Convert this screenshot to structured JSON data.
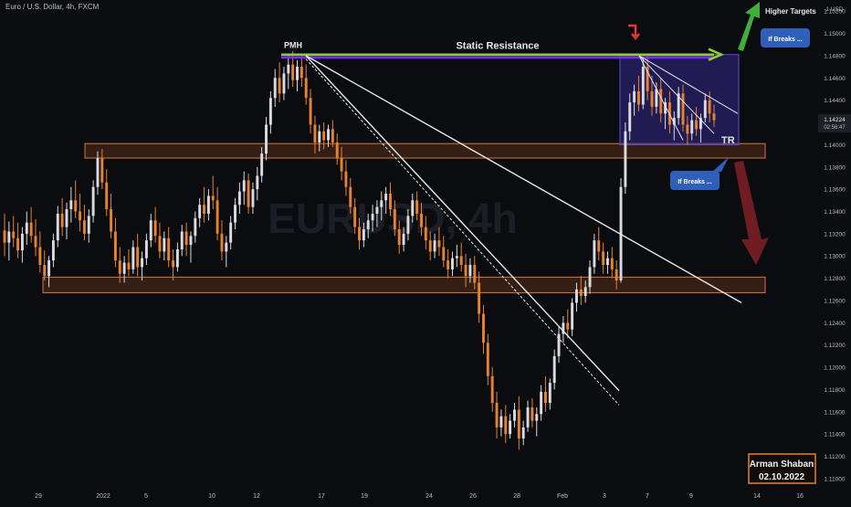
{
  "header": {
    "title": "Euro / U.S. Dollar, 4h, FXCM"
  },
  "watermark": {
    "symbol": "EURUSD, 4h"
  },
  "price_axis": {
    "currency": "USD",
    "currency_label": "1 USD"
  },
  "colors": {
    "background": "#0b0c10",
    "candle_up": "#d9dbe0",
    "candle_down": "#e8822b",
    "zone_fill": "#5a2f1a",
    "zone_border": "#d4763a",
    "resistance_line": "#8bd12a",
    "resistance_line_under": "#7a2cff",
    "range_box": "#3b2fa8",
    "arrow_up": "#3fae3a",
    "arrow_down": "#7a1f26",
    "callout_bg": "#2f5fb8",
    "signature_border": "#e8822b"
  },
  "annotations": {
    "pmh_label": "PMH",
    "static_resistance_label": "Static Resistance",
    "tr_label": "TR",
    "higher_targets_label": "Higher Targets",
    "callout_top": "If Breaks ...",
    "callout_bottom": "If Breaks ...",
    "signature_name": "Arman Shaban",
    "signature_date": "02.10.2022"
  },
  "chart_data": {
    "type": "candlestick",
    "title": "Euro / U.S. Dollar, 4h, FXCM",
    "xlabel": "",
    "ylabel": "",
    "y_ticks": [
      "1.15200",
      "1.15000",
      "1.14800",
      "1.14600",
      "1.14400",
      "1.14200",
      "1.14000",
      "1.13800",
      "1.13600",
      "1.13400",
      "1.13200",
      "1.13000",
      "1.12800",
      "1.12600",
      "1.12400",
      "1.12200",
      "1.12000",
      "1.11800",
      "1.11600",
      "1.11400",
      "1.11200",
      "1.11000"
    ],
    "x_ticks": [
      "29",
      "2022",
      "5",
      "10",
      "12",
      "17",
      "19",
      "24",
      "26",
      "28",
      "Feb",
      "3",
      "7",
      "9",
      "14",
      "16"
    ],
    "ylim": [
      1.1095,
      1.153
    ],
    "current_price": "1.14224",
    "countdown": "02:56:47",
    "levels": {
      "static_resistance": 1.1481,
      "resistance_zone": [
        1.1388,
        1.1401
      ],
      "support_zone": [
        1.1267,
        1.1281
      ]
    },
    "ohlc": [
      [
        1.1323,
        1.1338,
        1.13,
        1.1312
      ],
      [
        1.1312,
        1.1331,
        1.1296,
        1.1322
      ],
      [
        1.1322,
        1.1336,
        1.1308,
        1.1316
      ],
      [
        1.1316,
        1.133,
        1.1298,
        1.1305
      ],
      [
        1.1305,
        1.1326,
        1.1294,
        1.132
      ],
      [
        1.132,
        1.134,
        1.131,
        1.133
      ],
      [
        1.133,
        1.1344,
        1.1312,
        1.1318
      ],
      [
        1.1318,
        1.1333,
        1.13,
        1.1308
      ],
      [
        1.1308,
        1.1322,
        1.1285,
        1.1292
      ],
      [
        1.1292,
        1.1305,
        1.1278,
        1.1282
      ],
      [
        1.1282,
        1.13,
        1.1272,
        1.1296
      ],
      [
        1.1296,
        1.132,
        1.129,
        1.1314
      ],
      [
        1.1314,
        1.1345,
        1.1308,
        1.1338
      ],
      [
        1.1338,
        1.1352,
        1.1318,
        1.1326
      ],
      [
        1.1326,
        1.1348,
        1.1315,
        1.1342
      ],
      [
        1.1342,
        1.1362,
        1.133,
        1.135
      ],
      [
        1.135,
        1.1368,
        1.1334,
        1.134
      ],
      [
        1.134,
        1.1356,
        1.1322,
        1.1332
      ],
      [
        1.1332,
        1.1346,
        1.1314,
        1.132
      ],
      [
        1.132,
        1.1342,
        1.1312,
        1.1336
      ],
      [
        1.1336,
        1.1368,
        1.133,
        1.1362
      ],
      [
        1.1362,
        1.1394,
        1.1355,
        1.1388
      ],
      [
        1.1388,
        1.1396,
        1.136,
        1.1366
      ],
      [
        1.1366,
        1.1378,
        1.1336,
        1.1342
      ],
      [
        1.1342,
        1.1356,
        1.1316,
        1.1322
      ],
      [
        1.1322,
        1.1334,
        1.129,
        1.1296
      ],
      [
        1.1296,
        1.1308,
        1.1276,
        1.1284
      ],
      [
        1.1284,
        1.13,
        1.1276,
        1.1294
      ],
      [
        1.1294,
        1.1306,
        1.1282,
        1.1288
      ],
      [
        1.1288,
        1.1314,
        1.1284,
        1.1308
      ],
      [
        1.1308,
        1.132,
        1.1282,
        1.129
      ],
      [
        1.129,
        1.1304,
        1.1278,
        1.1298
      ],
      [
        1.1298,
        1.132,
        1.1292,
        1.1314
      ],
      [
        1.1314,
        1.1338,
        1.1308,
        1.1332
      ],
      [
        1.1332,
        1.1344,
        1.1312,
        1.1318
      ],
      [
        1.1318,
        1.133,
        1.1298,
        1.1304
      ],
      [
        1.1304,
        1.1322,
        1.1296,
        1.1316
      ],
      [
        1.1316,
        1.1326,
        1.129,
        1.1296
      ],
      [
        1.1296,
        1.1306,
        1.1278,
        1.129
      ],
      [
        1.129,
        1.1312,
        1.1286,
        1.1306
      ],
      [
        1.1306,
        1.1328,
        1.13,
        1.1322
      ],
      [
        1.1322,
        1.133,
        1.13,
        1.131
      ],
      [
        1.131,
        1.1322,
        1.1294,
        1.1318
      ],
      [
        1.1318,
        1.134,
        1.1312,
        1.1334
      ],
      [
        1.1334,
        1.1352,
        1.1326,
        1.1346
      ],
      [
        1.1346,
        1.1362,
        1.133,
        1.1338
      ],
      [
        1.1338,
        1.136,
        1.1332,
        1.1354
      ],
      [
        1.1354,
        1.1372,
        1.1342,
        1.135
      ],
      [
        1.135,
        1.1362,
        1.1314,
        1.132
      ],
      [
        1.132,
        1.1332,
        1.1296,
        1.1304
      ],
      [
        1.1304,
        1.1318,
        1.129,
        1.1312
      ],
      [
        1.1312,
        1.1336,
        1.1306,
        1.133
      ],
      [
        1.133,
        1.1352,
        1.1324,
        1.1346
      ],
      [
        1.1346,
        1.1366,
        1.1338,
        1.1358
      ],
      [
        1.1358,
        1.1376,
        1.1346,
        1.1368
      ],
      [
        1.1368,
        1.1374,
        1.1338,
        1.1344
      ],
      [
        1.1344,
        1.1366,
        1.1338,
        1.136
      ],
      [
        1.136,
        1.138,
        1.135,
        1.1372
      ],
      [
        1.1372,
        1.1398,
        1.1366,
        1.1392
      ],
      [
        1.1392,
        1.1425,
        1.1386,
        1.1418
      ],
      [
        1.1418,
        1.1448,
        1.141,
        1.1442
      ],
      [
        1.1442,
        1.1468,
        1.1434,
        1.146
      ],
      [
        1.146,
        1.1474,
        1.1438,
        1.1446
      ],
      [
        1.1446,
        1.147,
        1.144,
        1.1464
      ],
      [
        1.1464,
        1.148,
        1.145,
        1.1472
      ],
      [
        1.1472,
        1.1484,
        1.1452,
        1.1458
      ],
      [
        1.1458,
        1.1476,
        1.1448,
        1.147
      ],
      [
        1.147,
        1.1482,
        1.1452,
        1.146
      ],
      [
        1.146,
        1.1472,
        1.1436,
        1.1442
      ],
      [
        1.1442,
        1.145,
        1.141,
        1.1418
      ],
      [
        1.1418,
        1.1426,
        1.1392,
        1.1402
      ],
      [
        1.1402,
        1.1418,
        1.1394,
        1.1412
      ],
      [
        1.1412,
        1.142,
        1.1396,
        1.1404
      ],
      [
        1.1404,
        1.1418,
        1.1398,
        1.1414
      ],
      [
        1.1414,
        1.1422,
        1.1398,
        1.1402
      ],
      [
        1.1402,
        1.141,
        1.1382,
        1.1388
      ],
      [
        1.1388,
        1.1398,
        1.1368,
        1.1376
      ],
      [
        1.1376,
        1.1386,
        1.1354,
        1.1362
      ],
      [
        1.1362,
        1.137,
        1.1338,
        1.1344
      ],
      [
        1.1344,
        1.1352,
        1.132,
        1.1326
      ],
      [
        1.1326,
        1.1334,
        1.1306,
        1.1314
      ],
      [
        1.1314,
        1.133,
        1.1308,
        1.1324
      ],
      [
        1.1324,
        1.1338,
        1.1316,
        1.1332
      ],
      [
        1.1332,
        1.1346,
        1.1322,
        1.1338
      ],
      [
        1.1338,
        1.135,
        1.1326,
        1.1344
      ],
      [
        1.1344,
        1.1358,
        1.1332,
        1.135
      ],
      [
        1.135,
        1.1362,
        1.1338,
        1.1356
      ],
      [
        1.1356,
        1.1366,
        1.1336,
        1.1342
      ],
      [
        1.1342,
        1.135,
        1.1318,
        1.1324
      ],
      [
        1.1324,
        1.1332,
        1.1302,
        1.131
      ],
      [
        1.131,
        1.1326,
        1.1304,
        1.132
      ],
      [
        1.132,
        1.1342,
        1.1314,
        1.1336
      ],
      [
        1.1336,
        1.1356,
        1.133,
        1.135
      ],
      [
        1.135,
        1.1358,
        1.1332,
        1.1338
      ],
      [
        1.1338,
        1.1348,
        1.1318,
        1.1326
      ],
      [
        1.1326,
        1.1336,
        1.1306,
        1.1314
      ],
      [
        1.1314,
        1.1322,
        1.1296,
        1.1304
      ],
      [
        1.1304,
        1.132,
        1.1298,
        1.1314
      ],
      [
        1.1314,
        1.1326,
        1.13,
        1.1308
      ],
      [
        1.1308,
        1.1318,
        1.129,
        1.1296
      ],
      [
        1.1296,
        1.1306,
        1.128,
        1.1288
      ],
      [
        1.1288,
        1.1304,
        1.1282,
        1.1298
      ],
      [
        1.1298,
        1.131,
        1.129,
        1.13
      ],
      [
        1.13,
        1.1312,
        1.1286,
        1.1292
      ],
      [
        1.1292,
        1.1302,
        1.1272,
        1.1282
      ],
      [
        1.1282,
        1.1298,
        1.1276,
        1.1292
      ],
      [
        1.1292,
        1.13,
        1.127,
        1.1276
      ],
      [
        1.1276,
        1.1286,
        1.124,
        1.1248
      ],
      [
        1.1248,
        1.1256,
        1.1212,
        1.1222
      ],
      [
        1.1222,
        1.123,
        1.1184,
        1.1192
      ],
      [
        1.1192,
        1.12,
        1.116,
        1.1168
      ],
      [
        1.1168,
        1.1178,
        1.1136,
        1.1146
      ],
      [
        1.1146,
        1.1162,
        1.1138,
        1.1156
      ],
      [
        1.1156,
        1.1166,
        1.1132,
        1.114
      ],
      [
        1.114,
        1.1158,
        1.1136,
        1.1152
      ],
      [
        1.1152,
        1.1168,
        1.1146,
        1.1162
      ],
      [
        1.1162,
        1.1174,
        1.1126,
        1.1136
      ],
      [
        1.1136,
        1.1152,
        1.113,
        1.1146
      ],
      [
        1.1146,
        1.117,
        1.1142,
        1.1164
      ],
      [
        1.1164,
        1.1172,
        1.1146,
        1.1152
      ],
      [
        1.1152,
        1.1164,
        1.1138,
        1.1158
      ],
      [
        1.1158,
        1.1184,
        1.1152,
        1.1178
      ],
      [
        1.1178,
        1.1192,
        1.116,
        1.1168
      ],
      [
        1.1168,
        1.119,
        1.1162,
        1.1186
      ],
      [
        1.1186,
        1.1216,
        1.118,
        1.121
      ],
      [
        1.121,
        1.1236,
        1.1204,
        1.123
      ],
      [
        1.123,
        1.1246,
        1.1222,
        1.124
      ],
      [
        1.124,
        1.1252,
        1.1226,
        1.1234
      ],
      [
        1.1234,
        1.1262,
        1.1228,
        1.1258
      ],
      [
        1.1258,
        1.1276,
        1.125,
        1.127
      ],
      [
        1.127,
        1.1282,
        1.1256,
        1.1264
      ],
      [
        1.1264,
        1.1278,
        1.1258,
        1.1272
      ],
      [
        1.1272,
        1.1296,
        1.1266,
        1.129
      ],
      [
        1.129,
        1.132,
        1.1284,
        1.1314
      ],
      [
        1.1314,
        1.1326,
        1.1296,
        1.1304
      ],
      [
        1.1304,
        1.1312,
        1.1284,
        1.1292
      ],
      [
        1.1292,
        1.1304,
        1.1284,
        1.1298
      ],
      [
        1.1298,
        1.1308,
        1.128,
        1.1288
      ],
      [
        1.1288,
        1.1296,
        1.127,
        1.1278
      ],
      [
        1.1278,
        1.137,
        1.1276,
        1.1362
      ],
      [
        1.1362,
        1.142,
        1.1356,
        1.1412
      ],
      [
        1.1412,
        1.1446,
        1.1404,
        1.1438
      ],
      [
        1.1438,
        1.1454,
        1.1426,
        1.1448
      ],
      [
        1.1448,
        1.1462,
        1.143,
        1.1436
      ],
      [
        1.1436,
        1.1478,
        1.1432,
        1.147
      ],
      [
        1.147,
        1.1482,
        1.144,
        1.1448
      ],
      [
        1.1448,
        1.1462,
        1.1426,
        1.1434
      ],
      [
        1.1434,
        1.1456,
        1.1428,
        1.145
      ],
      [
        1.145,
        1.146,
        1.142,
        1.1428
      ],
      [
        1.1428,
        1.1442,
        1.1414,
        1.1438
      ],
      [
        1.1438,
        1.1448,
        1.141,
        1.1418
      ],
      [
        1.1418,
        1.143,
        1.1404,
        1.1424
      ],
      [
        1.1424,
        1.1452,
        1.1418,
        1.1446
      ],
      [
        1.1446,
        1.1454,
        1.1412,
        1.1418
      ],
      [
        1.1418,
        1.1426,
        1.14,
        1.141
      ],
      [
        1.141,
        1.1428,
        1.1404,
        1.1422
      ],
      [
        1.1422,
        1.1434,
        1.1408,
        1.1414
      ],
      [
        1.1414,
        1.1428,
        1.1402,
        1.1424
      ],
      [
        1.1424,
        1.1446,
        1.142,
        1.144
      ],
      [
        1.144,
        1.1448,
        1.142,
        1.1428
      ],
      [
        1.1428,
        1.1436,
        1.1416,
        1.1422
      ]
    ]
  }
}
